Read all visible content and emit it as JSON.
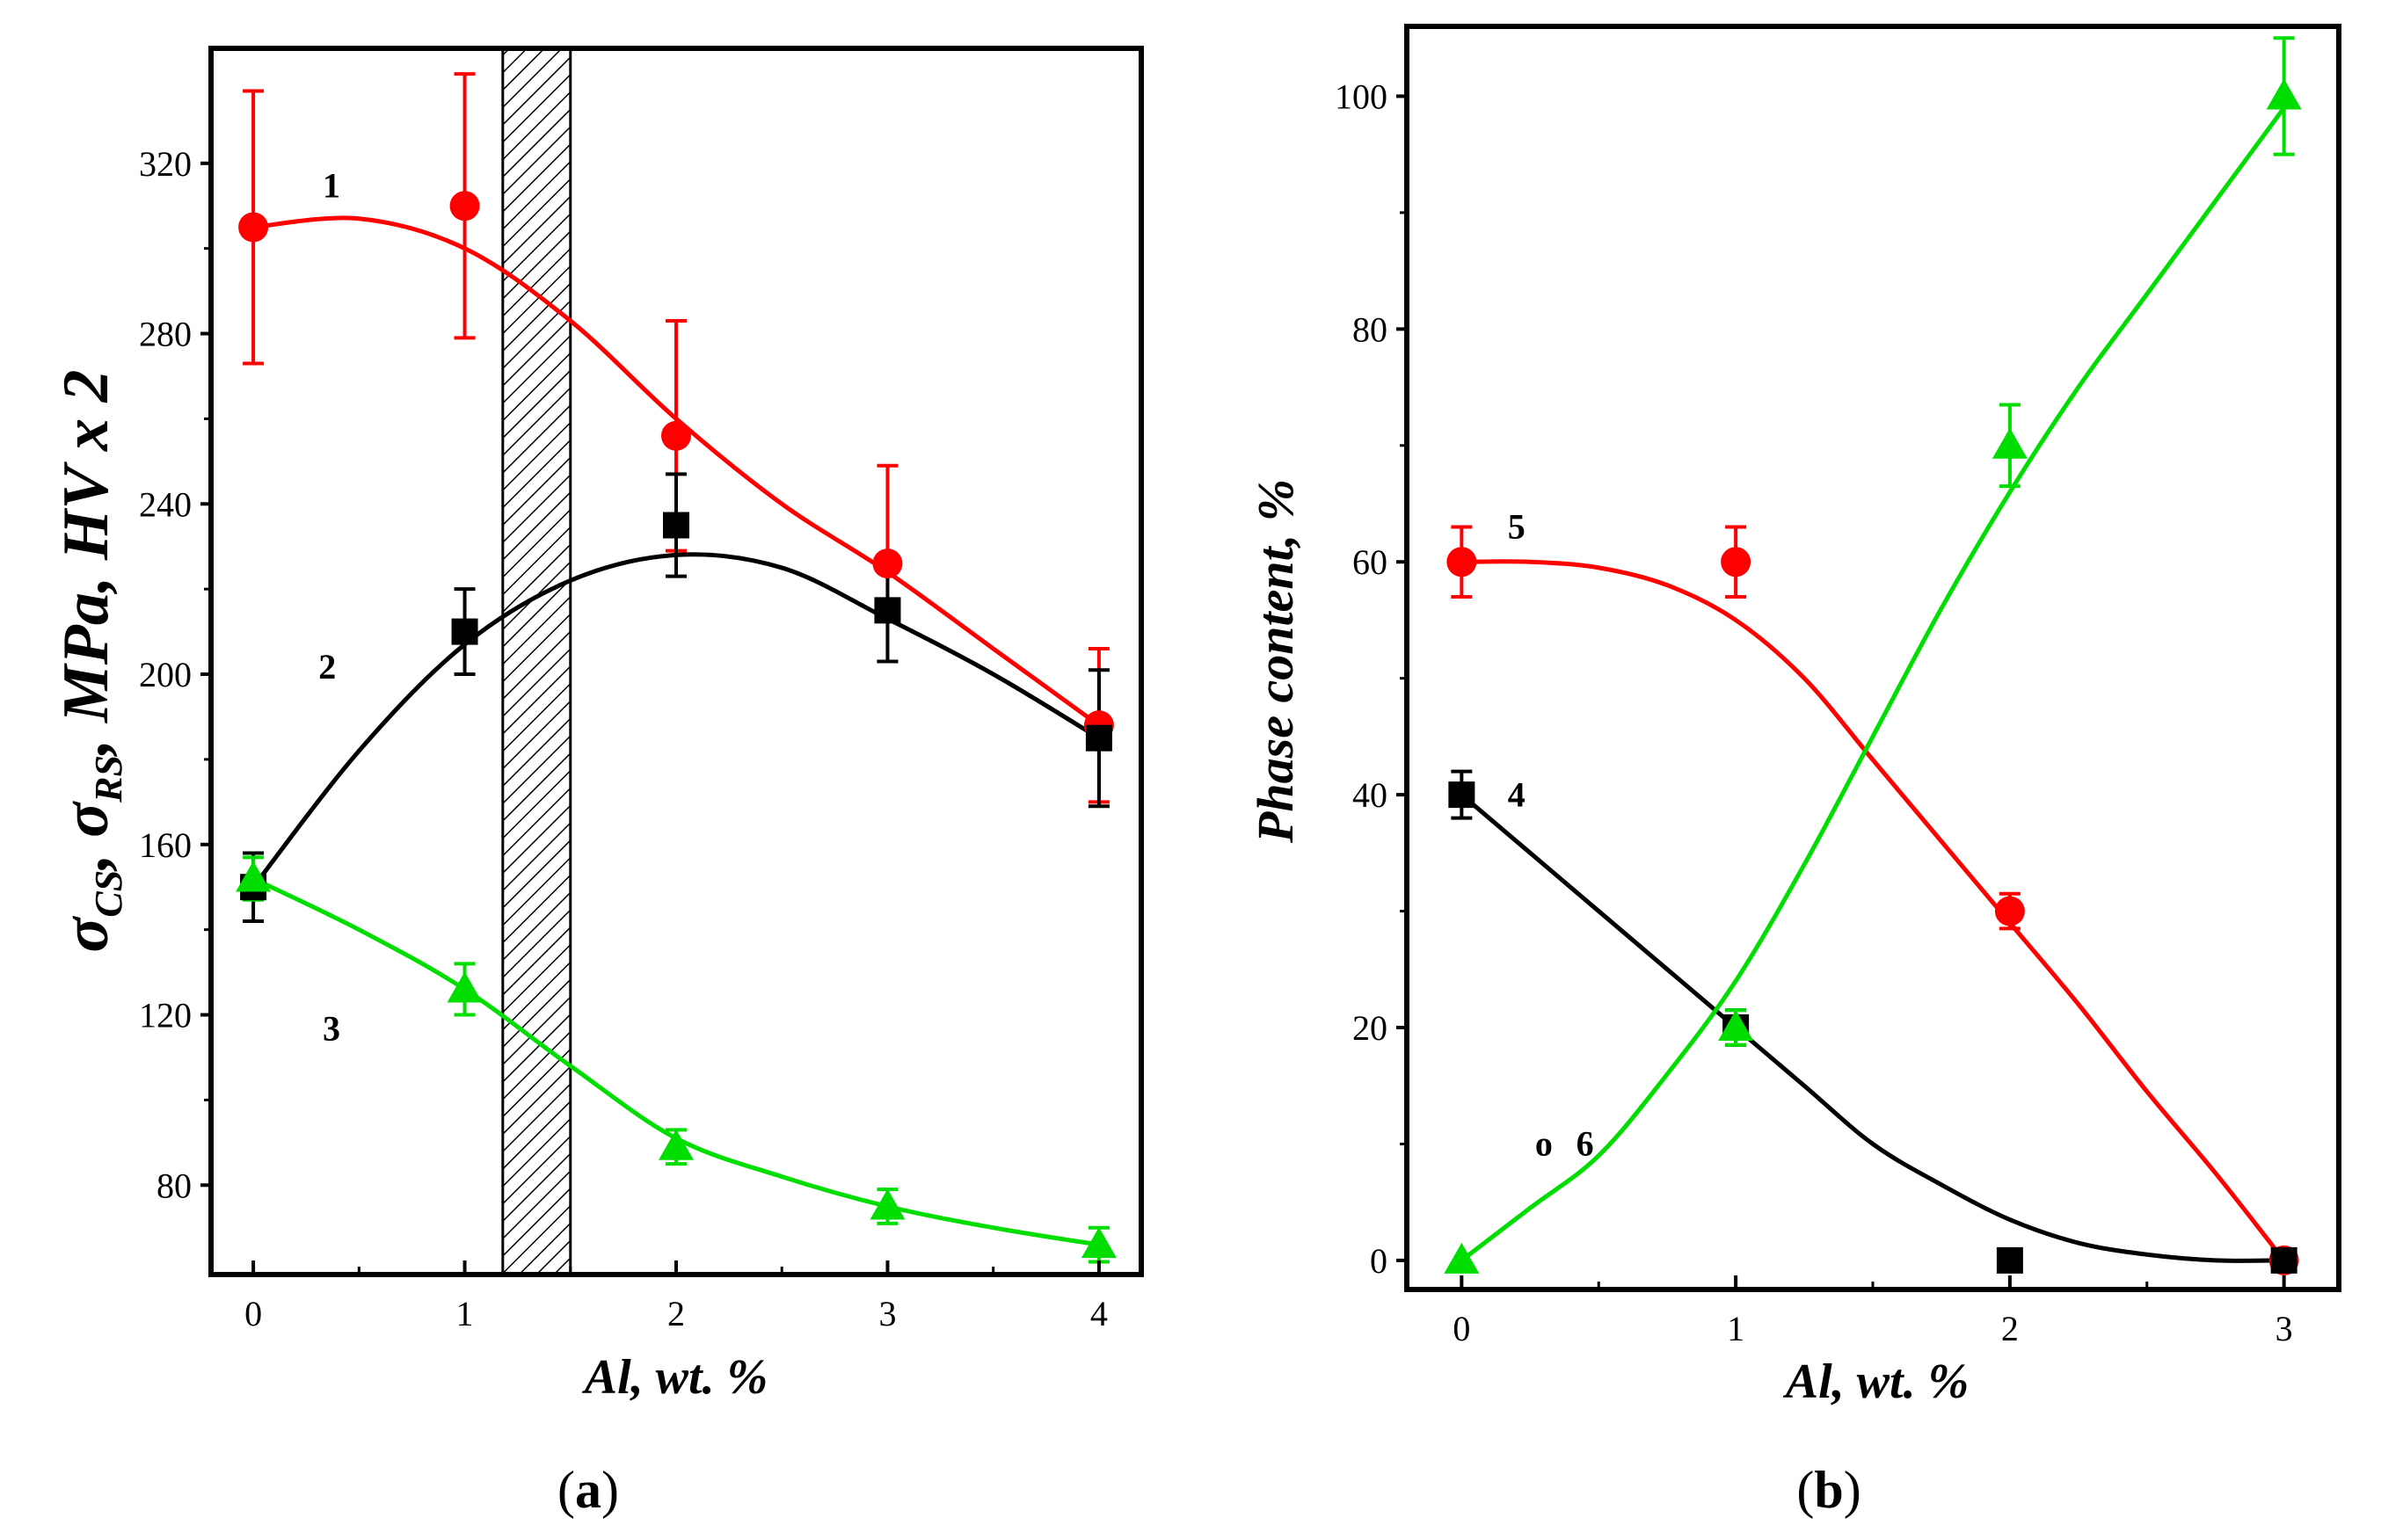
{
  "chart_data": [
    {
      "type": "line",
      "panel_caption_open": "(",
      "panel_caption_letter": "a",
      "panel_caption_close": ")",
      "xlabel": "Al, wt. %",
      "ylabel_sigma": "σ",
      "ylabel_sub1": "CS",
      "ylabel_sep1": ", ",
      "ylabel_sub2": "RS",
      "ylabel_rest": ", MPa, HV x 2",
      "xlim": [
        -0.2,
        4.2
      ],
      "ylim": [
        59,
        347
      ],
      "xticks": [
        0,
        1,
        2,
        3,
        4
      ],
      "xtick_labels": [
        "0",
        "1",
        "2",
        "3",
        "4"
      ],
      "yticks": [
        80,
        120,
        160,
        200,
        240,
        280,
        320
      ],
      "ytick_labels": [
        "80",
        "120",
        "160",
        "200",
        "240",
        "280",
        "320"
      ],
      "shaded_band": [
        1.18,
        1.5
      ],
      "series": [
        {
          "name": "1",
          "label": "1",
          "color": "#ff0000",
          "marker": "circle",
          "x": [
            0,
            1,
            2,
            3,
            4
          ],
          "y": [
            305,
            310,
            256,
            226,
            188
          ],
          "err": [
            32,
            31,
            27,
            23,
            18
          ],
          "fit_x": [
            0,
            0.5,
            1,
            1.5,
            2,
            2.5,
            3,
            3.5,
            4
          ],
          "fit_y": [
            305,
            307,
            300,
            283,
            260,
            240,
            224,
            206,
            188
          ],
          "label_pos": [
            0.37,
            312
          ]
        },
        {
          "name": "2",
          "label": "2",
          "color": "#000000",
          "marker": "square",
          "x": [
            0,
            1,
            2,
            3,
            4
          ],
          "y": [
            150,
            210,
            235,
            215,
            185
          ],
          "err": [
            8,
            10,
            12,
            12,
            16
          ],
          "fit_x": [
            0,
            0.5,
            1,
            1.5,
            2,
            2.5,
            3,
            3.5,
            4
          ],
          "fit_y": [
            150,
            182,
            207,
            222,
            228,
            225,
            213,
            200,
            185
          ],
          "label_pos": [
            0.35,
            199
          ]
        },
        {
          "name": "3",
          "label": "3",
          "color": "#00dd00",
          "marker": "triangle",
          "x": [
            0,
            1,
            2,
            3,
            4
          ],
          "y": [
            152,
            126,
            89,
            75,
            66
          ],
          "err": [
            5,
            6,
            4,
            4,
            4
          ],
          "fit_x": [
            0,
            0.5,
            1,
            1.5,
            2,
            2.5,
            3,
            3.5,
            4
          ],
          "fit_y": [
            152,
            140,
            126,
            108,
            91,
            82,
            75,
            70,
            66
          ],
          "label_pos": [
            0.37,
            114
          ]
        }
      ]
    },
    {
      "type": "line",
      "panel_caption_open": "(",
      "panel_caption_letter": "b",
      "panel_caption_close": ")",
      "xlabel": "Al, wt. %",
      "ylabel": "Phase content, %",
      "xlim": [
        -0.2,
        3.2
      ],
      "ylim": [
        -2.5,
        106
      ],
      "xticks": [
        0,
        1,
        2,
        3
      ],
      "xtick_labels": [
        "0",
        "1",
        "2",
        "3"
      ],
      "yticks": [
        0,
        20,
        40,
        60,
        80,
        100
      ],
      "ytick_labels": [
        "0",
        "20",
        "40",
        "60",
        "80",
        "100"
      ],
      "series": [
        {
          "name": "5",
          "label": "5",
          "color": "#ff0000",
          "marker": "circle",
          "x": [
            0,
            1,
            2,
            3
          ],
          "y": [
            60,
            60,
            30,
            0
          ],
          "err": [
            3,
            3,
            1.5,
            0
          ],
          "fit_x": [
            0,
            0.25,
            0.5,
            0.75,
            1,
            1.25,
            1.5,
            1.75,
            2,
            2.25,
            2.5,
            2.75,
            3
          ],
          "fit_y": [
            60,
            60,
            59.5,
            58,
            55,
            50,
            43,
            36,
            29,
            22,
            14.5,
            7.5,
            0
          ],
          "label_pos": [
            0.2,
            62
          ]
        },
        {
          "name": "4",
          "label": "4",
          "color": "#000000",
          "marker": "square",
          "x": [
            0,
            1,
            2,
            3
          ],
          "y": [
            40,
            20,
            0,
            0
          ],
          "err": [
            2,
            1.5,
            0,
            0
          ],
          "fit_x": [
            0,
            0.25,
            0.5,
            0.75,
            1,
            1.25,
            1.5,
            1.75,
            2,
            2.25,
            2.5,
            2.75,
            3
          ],
          "fit_y": [
            40,
            35,
            30,
            25,
            20,
            15,
            10,
            6.5,
            3.5,
            1.5,
            0.5,
            0,
            0
          ],
          "label_pos": [
            0.2,
            39
          ]
        },
        {
          "name": "6",
          "label": "6",
          "color": "#00dd00",
          "marker": "triangle",
          "x": [
            0,
            1,
            2,
            3
          ],
          "y": [
            0,
            20,
            70,
            100
          ],
          "err": [
            0,
            1.5,
            3.5,
            5
          ],
          "fit_x": [
            0,
            0.25,
            0.5,
            0.75,
            1,
            1.25,
            1.5,
            1.75,
            2,
            2.25,
            2.5,
            2.75,
            3
          ],
          "fit_y": [
            0,
            4.5,
            9,
            16,
            24,
            34,
            45,
            56,
            66,
            75,
            83,
            91,
            99
          ],
          "label_pos": [
            0.45,
            9
          ],
          "stray_label": "o",
          "stray_label_pos": [
            0.3,
            9
          ]
        }
      ]
    }
  ]
}
